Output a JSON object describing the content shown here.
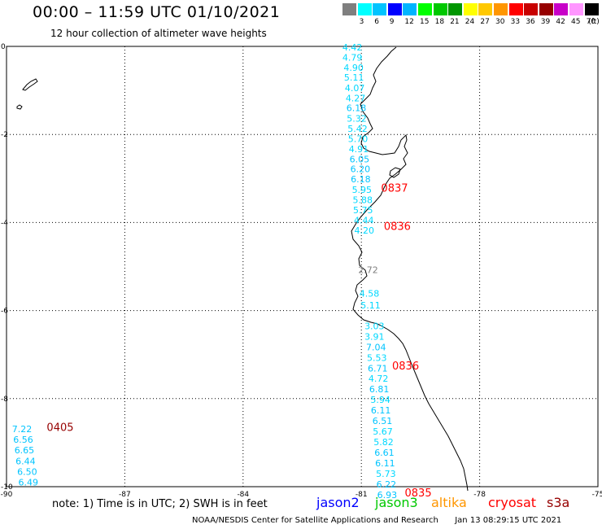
{
  "header": {
    "title": "00:00 – 11:59 UTC 01/10/2021",
    "subtitle": "12 hour collection of altimeter wave heights"
  },
  "legend": {
    "unit": "(ft)",
    "items": [
      {
        "label": "",
        "color": "#7f7f7f"
      },
      {
        "label": "3",
        "color": "#00ffff"
      },
      {
        "label": "6",
        "color": "#00c4ff"
      },
      {
        "label": "9",
        "color": "#0000ff"
      },
      {
        "label": "12",
        "color": "#00b4ff"
      },
      {
        "label": "15",
        "color": "#00ff00"
      },
      {
        "label": "18",
        "color": "#00c800"
      },
      {
        "label": "21",
        "color": "#009600"
      },
      {
        "label": "24",
        "color": "#ffff00"
      },
      {
        "label": "27",
        "color": "#ffc800"
      },
      {
        "label": "30",
        "color": "#ff9600"
      },
      {
        "label": "33",
        "color": "#ff0000"
      },
      {
        "label": "36",
        "color": "#c80000"
      },
      {
        "label": "39",
        "color": "#960000"
      },
      {
        "label": "42",
        "color": "#c800c8"
      },
      {
        "label": "45",
        "color": "#ff96ff"
      },
      {
        "label": "70",
        "color": "#000000"
      }
    ]
  },
  "axes": {
    "lon_ticks": [
      "-90",
      "-87",
      "-84",
      "-81",
      "-78",
      "-75"
    ],
    "lat_ticks": [
      "0",
      "-2",
      "-4",
      "-6",
      "-8",
      "-10"
    ]
  },
  "observations": [
    {
      "text": "4.42",
      "lon": -81.48,
      "lat": -0.09,
      "color": "#00d8ff"
    },
    {
      "text": "4.79",
      "lon": -81.48,
      "lat": -0.32,
      "color": "#00d8ff"
    },
    {
      "text": "4.90",
      "lon": -81.45,
      "lat": -0.55,
      "color": "#00d8ff"
    },
    {
      "text": "5.11",
      "lon": -81.44,
      "lat": -0.78,
      "color": "#00d8ff"
    },
    {
      "text": "4.07",
      "lon": -81.42,
      "lat": -1.02,
      "color": "#00d8ff"
    },
    {
      "text": "4.27",
      "lon": -81.4,
      "lat": -1.25,
      "color": "#00d8ff"
    },
    {
      "text": "6.18",
      "lon": -81.38,
      "lat": -1.47,
      "color": "#00c4ff"
    },
    {
      "text": "5.32",
      "lon": -81.37,
      "lat": -1.71,
      "color": "#00d8ff"
    },
    {
      "text": "5.42",
      "lon": -81.35,
      "lat": -1.94,
      "color": "#00d8ff"
    },
    {
      "text": "5.70",
      "lon": -81.34,
      "lat": -2.17,
      "color": "#00d8ff"
    },
    {
      "text": "4.91",
      "lon": -81.32,
      "lat": -2.4,
      "color": "#00d8ff"
    },
    {
      "text": "6.05",
      "lon": -81.3,
      "lat": -2.63,
      "color": "#00c4ff"
    },
    {
      "text": "6.20",
      "lon": -81.28,
      "lat": -2.86,
      "color": "#00c4ff"
    },
    {
      "text": "6.18",
      "lon": -81.27,
      "lat": -3.09,
      "color": "#00c4ff"
    },
    {
      "text": "5.95",
      "lon": -81.24,
      "lat": -3.33,
      "color": "#00d8ff"
    },
    {
      "text": "5.88",
      "lon": -81.22,
      "lat": -3.56,
      "color": "#00d8ff"
    },
    {
      "text": "5.75",
      "lon": -81.21,
      "lat": -3.79,
      "color": "#00d8ff"
    },
    {
      "text": "4.44",
      "lon": -81.19,
      "lat": -4.02,
      "color": "#00d8ff"
    },
    {
      "text": "4.20",
      "lon": -81.18,
      "lat": -4.25,
      "color": "#00d8ff"
    },
    {
      "text": "2.72",
      "lon": -81.08,
      "lat": -5.15,
      "color": "#7f7f7f"
    },
    {
      "text": "4.58",
      "lon": -81.05,
      "lat": -5.68,
      "color": "#00d8ff"
    },
    {
      "text": "5.11",
      "lon": -81.02,
      "lat": -5.95,
      "color": "#00d8ff"
    },
    {
      "text": "3.03",
      "lon": -80.92,
      "lat": -6.42,
      "color": "#00d8ff"
    },
    {
      "text": "3.91",
      "lon": -80.92,
      "lat": -6.66,
      "color": "#00d8ff"
    },
    {
      "text": "7.04",
      "lon": -80.88,
      "lat": -6.9,
      "color": "#00c4ff"
    },
    {
      "text": "5.53",
      "lon": -80.86,
      "lat": -7.14,
      "color": "#00d8ff"
    },
    {
      "text": "6.71",
      "lon": -80.84,
      "lat": -7.38,
      "color": "#00c4ff"
    },
    {
      "text": "4.72",
      "lon": -80.82,
      "lat": -7.62,
      "color": "#00d8ff"
    },
    {
      "text": "6.81",
      "lon": -80.8,
      "lat": -7.86,
      "color": "#00c4ff"
    },
    {
      "text": "5.94",
      "lon": -80.77,
      "lat": -8.1,
      "color": "#00d8ff"
    },
    {
      "text": "6.11",
      "lon": -80.76,
      "lat": -8.34,
      "color": "#00c4ff"
    },
    {
      "text": "6.51",
      "lon": -80.72,
      "lat": -8.58,
      "color": "#00c4ff"
    },
    {
      "text": "5.67",
      "lon": -80.71,
      "lat": -8.82,
      "color": "#00d8ff"
    },
    {
      "text": "5.82",
      "lon": -80.69,
      "lat": -9.06,
      "color": "#00d8ff"
    },
    {
      "text": "6.61",
      "lon": -80.67,
      "lat": -9.3,
      "color": "#00c4ff"
    },
    {
      "text": "6.11",
      "lon": -80.65,
      "lat": -9.54,
      "color": "#00c4ff"
    },
    {
      "text": "5.73",
      "lon": -80.63,
      "lat": -9.78,
      "color": "#00d8ff"
    },
    {
      "text": "6.22",
      "lon": -80.62,
      "lat": -10.02,
      "color": "#00c4ff"
    },
    {
      "text": "6.93",
      "lon": -80.6,
      "lat": -10.26,
      "color": "#00c4ff"
    },
    {
      "text": "7.22",
      "lon": -89.86,
      "lat": -8.76,
      "color": "#00c4ff"
    },
    {
      "text": "6.56",
      "lon": -89.83,
      "lat": -9.0,
      "color": "#00c4ff"
    },
    {
      "text": "6.65",
      "lon": -89.8,
      "lat": -9.24,
      "color": "#00c4ff"
    },
    {
      "text": "6.44",
      "lon": -89.77,
      "lat": -9.49,
      "color": "#00c4ff"
    },
    {
      "text": "6.50",
      "lon": -89.73,
      "lat": -9.73,
      "color": "#00c4ff"
    },
    {
      "text": "6.49",
      "lon": -89.7,
      "lat": -9.97,
      "color": "#00c4ff"
    }
  ],
  "pass_times": [
    {
      "text": "0837",
      "lon": -80.5,
      "lat": -3.3,
      "color": "#ff0000"
    },
    {
      "text": "0836",
      "lon": -80.43,
      "lat": -4.17,
      "color": "#ff0000"
    },
    {
      "text": "0836",
      "lon": -80.22,
      "lat": -7.34,
      "color": "#ff0000"
    },
    {
      "text": "0835",
      "lon": -79.9,
      "lat": -10.22,
      "color": "#ff0000"
    },
    {
      "text": "0405",
      "lon": -88.98,
      "lat": -8.73,
      "color": "#960000"
    }
  ],
  "notes": {
    "text": "note:  1) Time is in UTC;  2) SWH is in feet",
    "satellites": [
      {
        "name": "jason2",
        "color": "#0000ff"
      },
      {
        "name": "jason3",
        "color": "#00c800"
      },
      {
        "name": "altika",
        "color": "#ff9600"
      },
      {
        "name": "cryosat",
        "color": "#ff0000"
      },
      {
        "name": "s3a",
        "color": "#960000"
      }
    ]
  },
  "footer": {
    "credit": "NOAA/NESDIS Center for Satellite Applications and Research",
    "timestamp": "Jan 13 08:29:15 UTC 2021"
  }
}
